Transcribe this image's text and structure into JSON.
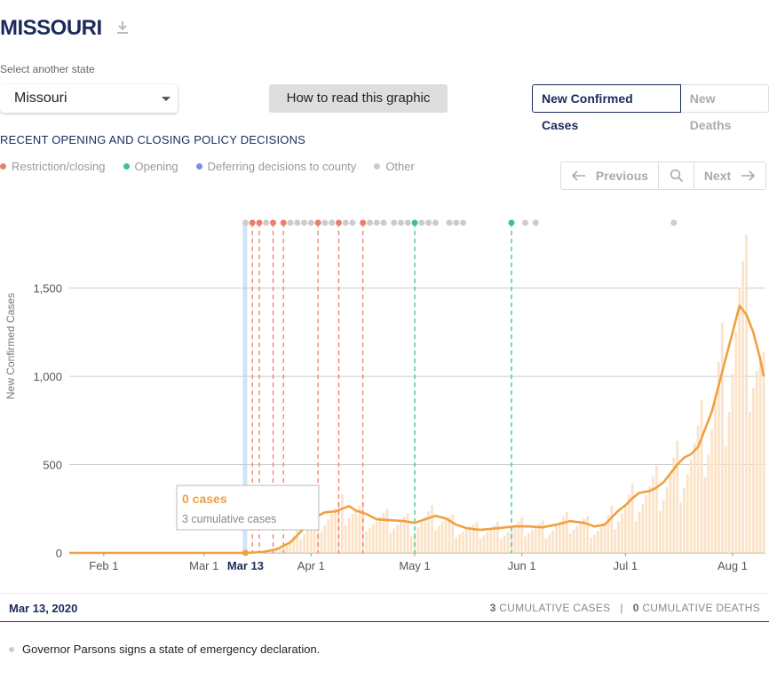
{
  "header": {
    "title": "MISSOURI",
    "download_icon": "download-icon"
  },
  "state_select": {
    "label": "Select another state",
    "value": "Missouri"
  },
  "howto_label": "How to read this graphic",
  "metric_toggle": {
    "active": "New Confirmed Cases",
    "inactive": "New Deaths"
  },
  "policy": {
    "heading": "RECENT OPENING AND CLOSING POLICY DECISIONS",
    "legend": [
      {
        "label": "Restriction/closing",
        "color": "#e8806a"
      },
      {
        "label": "Opening",
        "color": "#3dbf9e"
      },
      {
        "label": "Deferring decisions to county",
        "color": "#7b8be8"
      },
      {
        "label": "Other",
        "color": "#cccccc"
      }
    ]
  },
  "nav": {
    "previous": "Previous",
    "next": "Next",
    "search_icon": "search-icon"
  },
  "tooltip": {
    "cases": "0 cases",
    "cumulative": "3 cumulative cases"
  },
  "footer": {
    "date": "Mar 13, 2020",
    "cases_value": "3",
    "cases_label": "CUMULATIVE CASES",
    "deaths_value": "0",
    "deaths_label": "CUMULATIVE DEATHS",
    "note": "Governor Parsons signs a state of emergency declaration."
  },
  "colors": {
    "line": "#f0a040",
    "bars": "#fbe3c8",
    "grid": "#cccccc",
    "highlight": "#bcd9f2",
    "restriction": "#e8806a",
    "opening": "#3dbf9e",
    "other": "#cccccc"
  },
  "chart_data": {
    "type": "line",
    "ylabel": "New Confirmed Cases",
    "ylim": [
      0,
      1800
    ],
    "yticks": [
      {
        "value": 0,
        "label": "0"
      },
      {
        "value": 500,
        "label": "500"
      },
      {
        "value": 1000,
        "label": "1,000"
      },
      {
        "value": 1500,
        "label": "1,500"
      }
    ],
    "xticks": [
      {
        "date": "2020-02-01",
        "label": "Feb 1"
      },
      {
        "date": "2020-03-01",
        "label": "Mar 1"
      },
      {
        "date": "2020-04-01",
        "label": "Apr 1"
      },
      {
        "date": "2020-05-01",
        "label": "May 1"
      },
      {
        "date": "2020-06-01",
        "label": "Jun 1"
      },
      {
        "date": "2020-07-01",
        "label": "Jul 1"
      },
      {
        "date": "2020-08-01",
        "label": "Aug 1"
      }
    ],
    "xrange": [
      "2020-01-22",
      "2020-08-10"
    ],
    "selected": {
      "date": "2020-03-13",
      "label": "Mar 13",
      "value": 0
    },
    "series": [
      {
        "values": [
          {
            "x": "2020-01-22",
            "y": 0
          },
          {
            "x": "2020-03-13",
            "y": 0
          },
          {
            "x": "2020-03-18",
            "y": 5
          },
          {
            "x": "2020-03-22",
            "y": 20
          },
          {
            "x": "2020-03-26",
            "y": 60
          },
          {
            "x": "2020-03-30",
            "y": 140
          },
          {
            "x": "2020-04-02",
            "y": 200
          },
          {
            "x": "2020-04-05",
            "y": 230
          },
          {
            "x": "2020-04-08",
            "y": 235
          },
          {
            "x": "2020-04-10",
            "y": 250
          },
          {
            "x": "2020-04-12",
            "y": 265
          },
          {
            "x": "2020-04-14",
            "y": 240
          },
          {
            "x": "2020-04-17",
            "y": 220
          },
          {
            "x": "2020-04-20",
            "y": 190
          },
          {
            "x": "2020-04-24",
            "y": 185
          },
          {
            "x": "2020-04-28",
            "y": 180
          },
          {
            "x": "2020-05-01",
            "y": 170
          },
          {
            "x": "2020-05-04",
            "y": 190
          },
          {
            "x": "2020-05-07",
            "y": 210
          },
          {
            "x": "2020-05-10",
            "y": 195
          },
          {
            "x": "2020-05-13",
            "y": 160
          },
          {
            "x": "2020-05-16",
            "y": 140
          },
          {
            "x": "2020-05-20",
            "y": 130
          },
          {
            "x": "2020-05-25",
            "y": 140
          },
          {
            "x": "2020-05-30",
            "y": 150
          },
          {
            "x": "2020-06-03",
            "y": 150
          },
          {
            "x": "2020-06-07",
            "y": 145
          },
          {
            "x": "2020-06-11",
            "y": 160
          },
          {
            "x": "2020-06-15",
            "y": 180
          },
          {
            "x": "2020-06-19",
            "y": 170
          },
          {
            "x": "2020-06-22",
            "y": 150
          },
          {
            "x": "2020-06-25",
            "y": 160
          },
          {
            "x": "2020-06-27",
            "y": 200
          },
          {
            "x": "2020-06-29",
            "y": 240
          },
          {
            "x": "2020-07-01",
            "y": 270
          },
          {
            "x": "2020-07-03",
            "y": 310
          },
          {
            "x": "2020-07-05",
            "y": 340
          },
          {
            "x": "2020-07-08",
            "y": 350
          },
          {
            "x": "2020-07-10",
            "y": 370
          },
          {
            "x": "2020-07-12",
            "y": 400
          },
          {
            "x": "2020-07-14",
            "y": 450
          },
          {
            "x": "2020-07-16",
            "y": 500
          },
          {
            "x": "2020-07-18",
            "y": 540
          },
          {
            "x": "2020-07-20",
            "y": 560
          },
          {
            "x": "2020-07-22",
            "y": 600
          },
          {
            "x": "2020-07-24",
            "y": 700
          },
          {
            "x": "2020-07-26",
            "y": 800
          },
          {
            "x": "2020-07-28",
            "y": 950
          },
          {
            "x": "2020-07-30",
            "y": 1100
          },
          {
            "x": "2020-08-01",
            "y": 1250
          },
          {
            "x": "2020-08-03",
            "y": 1400
          },
          {
            "x": "2020-08-05",
            "y": 1350
          },
          {
            "x": "2020-08-07",
            "y": 1250
          },
          {
            "x": "2020-08-09",
            "y": 1100
          },
          {
            "x": "2020-08-10",
            "y": 1000
          }
        ]
      }
    ],
    "policy_events": [
      {
        "date": "2020-03-13",
        "type": "other"
      },
      {
        "date": "2020-03-15",
        "type": "restriction"
      },
      {
        "date": "2020-03-17",
        "type": "restriction"
      },
      {
        "date": "2020-03-21",
        "type": "restriction"
      },
      {
        "date": "2020-03-24",
        "type": "restriction"
      },
      {
        "date": "2020-04-03",
        "type": "restriction"
      },
      {
        "date": "2020-04-09",
        "type": "restriction"
      },
      {
        "date": "2020-04-16",
        "type": "restriction"
      },
      {
        "date": "2020-05-01",
        "type": "opening"
      },
      {
        "date": "2020-05-29",
        "type": "opening"
      },
      {
        "date": "2020-03-19",
        "type": "other"
      },
      {
        "date": "2020-03-26",
        "type": "other"
      },
      {
        "date": "2020-03-28",
        "type": "other"
      },
      {
        "date": "2020-03-30",
        "type": "other"
      },
      {
        "date": "2020-04-01",
        "type": "other"
      },
      {
        "date": "2020-04-05",
        "type": "other"
      },
      {
        "date": "2020-04-07",
        "type": "other"
      },
      {
        "date": "2020-04-11",
        "type": "other"
      },
      {
        "date": "2020-04-13",
        "type": "other"
      },
      {
        "date": "2020-04-18",
        "type": "other"
      },
      {
        "date": "2020-04-20",
        "type": "other"
      },
      {
        "date": "2020-04-22",
        "type": "other"
      },
      {
        "date": "2020-04-25",
        "type": "other"
      },
      {
        "date": "2020-04-27",
        "type": "other"
      },
      {
        "date": "2020-04-29",
        "type": "other"
      },
      {
        "date": "2020-05-03",
        "type": "other"
      },
      {
        "date": "2020-05-05",
        "type": "other"
      },
      {
        "date": "2020-05-07",
        "type": "other"
      },
      {
        "date": "2020-05-11",
        "type": "other"
      },
      {
        "date": "2020-05-13",
        "type": "other"
      },
      {
        "date": "2020-05-15",
        "type": "other"
      },
      {
        "date": "2020-06-02",
        "type": "other"
      },
      {
        "date": "2020-06-05",
        "type": "other"
      },
      {
        "date": "2020-07-15",
        "type": "other"
      }
    ]
  }
}
